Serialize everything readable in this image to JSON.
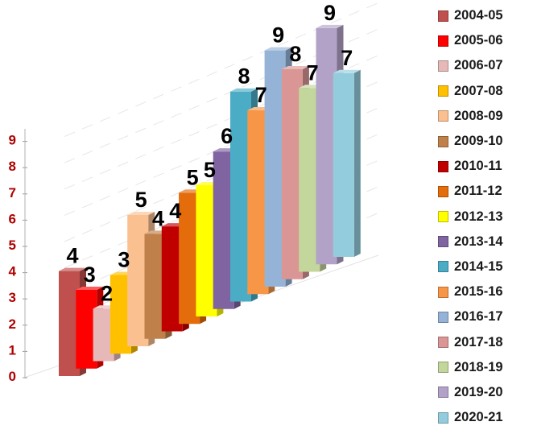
{
  "chart_data": {
    "type": "bar",
    "title": "",
    "xlabel": "",
    "ylabel": "",
    "ylim": [
      0,
      9
    ],
    "yticks": [
      "0",
      "1",
      "2",
      "3",
      "4",
      "5",
      "6",
      "7",
      "8",
      "9"
    ],
    "grid": true,
    "legend_position": "right",
    "categories": [
      "2004-05",
      "2005-06",
      "2006-07",
      "2007-08",
      "2008-09",
      "2009-10",
      "2010-11",
      "2011-12",
      "2012-13",
      "2013-14",
      "2014-15",
      "2015-16",
      "2016-17",
      "2017-18",
      "2018-19",
      "2019-20",
      "2020-21"
    ],
    "values": [
      4,
      3,
      2,
      3,
      5,
      4,
      4,
      5,
      5,
      6,
      8,
      7,
      9,
      8,
      7,
      9,
      7
    ],
    "data_labels": [
      "4",
      "3",
      "2",
      "3",
      "5",
      "4",
      "4",
      "5",
      "5",
      "6",
      "8",
      "7",
      "9",
      "8",
      "7",
      "9",
      "7"
    ],
    "colors": [
      "#c0504d",
      "#ff0000",
      "#e6b9b8",
      "#ffc000",
      "#fac090",
      "#c0804a",
      "#c00000",
      "#e46c0a",
      "#ffff00",
      "#8064a2",
      "#4bacc6",
      "#f79646",
      "#95b3d7",
      "#d99694",
      "#c3d69b",
      "#b3a2c7",
      "#93cddd"
    ]
  }
}
